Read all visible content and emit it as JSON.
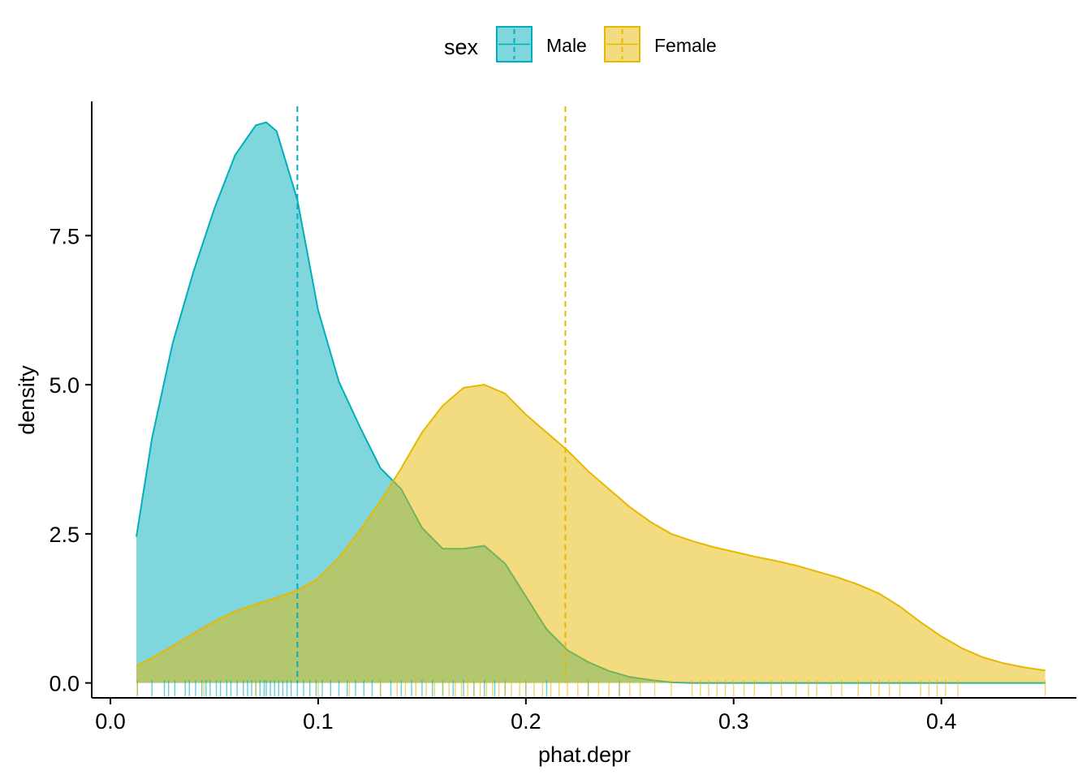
{
  "chart_data": {
    "type": "area",
    "xlabel": "phat.depr",
    "ylabel": "density",
    "xlim": [
      -0.009,
      0.465
    ],
    "ylim": [
      -0.25,
      9.75
    ],
    "x_ticks": [
      0.0,
      0.1,
      0.2,
      0.3,
      0.4
    ],
    "x_tick_labels": [
      "0.0",
      "0.1",
      "0.2",
      "0.3",
      "0.4"
    ],
    "y_ticks": [
      0.0,
      2.5,
      5.0,
      7.5
    ],
    "y_tick_labels": [
      "0.0",
      "2.5",
      "5.0",
      "7.5"
    ],
    "grid": false,
    "legend": {
      "title": "sex",
      "position": "top"
    },
    "series": [
      {
        "name": "Male",
        "color": "#00AFBB",
        "fill_opacity": 0.5,
        "mean": 0.09,
        "x": [
          0.0125,
          0.02,
          0.03,
          0.04,
          0.05,
          0.06,
          0.07,
          0.075,
          0.08,
          0.09,
          0.1,
          0.11,
          0.12,
          0.13,
          0.14,
          0.15,
          0.16,
          0.17,
          0.18,
          0.19,
          0.2,
          0.21,
          0.22,
          0.23,
          0.24,
          0.25,
          0.26,
          0.27,
          0.28,
          0.3,
          0.35,
          0.4,
          0.45
        ],
        "y": [
          2.45,
          4.1,
          5.7,
          6.9,
          7.95,
          8.85,
          9.35,
          9.4,
          9.25,
          8.1,
          6.25,
          5.05,
          4.3,
          3.6,
          3.25,
          2.6,
          2.25,
          2.25,
          2.3,
          2.0,
          1.45,
          0.9,
          0.55,
          0.35,
          0.2,
          0.1,
          0.05,
          0.01,
          0.0,
          0.0,
          0.0,
          0.0,
          0.0
        ]
      },
      {
        "name": "Female",
        "color": "#E7B800",
        "fill_opacity": 0.5,
        "mean": 0.219,
        "x": [
          0.0125,
          0.02,
          0.03,
          0.04,
          0.05,
          0.06,
          0.07,
          0.08,
          0.09,
          0.1,
          0.11,
          0.12,
          0.13,
          0.14,
          0.15,
          0.16,
          0.17,
          0.18,
          0.19,
          0.2,
          0.21,
          0.22,
          0.23,
          0.24,
          0.25,
          0.26,
          0.27,
          0.28,
          0.29,
          0.3,
          0.31,
          0.32,
          0.33,
          0.34,
          0.35,
          0.36,
          0.37,
          0.38,
          0.39,
          0.4,
          0.41,
          0.42,
          0.43,
          0.44,
          0.45
        ],
        "y": [
          0.28,
          0.42,
          0.62,
          0.83,
          1.03,
          1.2,
          1.32,
          1.43,
          1.55,
          1.75,
          2.1,
          2.55,
          3.05,
          3.6,
          4.2,
          4.65,
          4.95,
          5.0,
          4.85,
          4.5,
          4.2,
          3.9,
          3.55,
          3.25,
          2.95,
          2.7,
          2.5,
          2.38,
          2.28,
          2.2,
          2.12,
          2.05,
          1.97,
          1.87,
          1.77,
          1.65,
          1.5,
          1.28,
          1.02,
          0.78,
          0.58,
          0.43,
          0.33,
          0.26,
          0.21
        ]
      }
    ],
    "rug": {
      "Male": [
        0.013,
        0.02,
        0.026,
        0.028,
        0.031,
        0.036,
        0.038,
        0.041,
        0.044,
        0.046,
        0.048,
        0.051,
        0.053,
        0.056,
        0.058,
        0.061,
        0.064,
        0.066,
        0.068,
        0.07,
        0.072,
        0.074,
        0.075,
        0.077,
        0.079,
        0.081,
        0.083,
        0.085,
        0.087,
        0.09,
        0.093,
        0.096,
        0.099,
        0.102,
        0.106,
        0.11,
        0.114,
        0.118,
        0.122,
        0.126,
        0.13,
        0.135,
        0.14,
        0.145,
        0.15,
        0.155,
        0.16,
        0.165,
        0.17,
        0.175,
        0.18,
        0.185,
        0.19,
        0.2,
        0.21,
        0.23,
        0.245
      ],
      "Female": [
        0.013,
        0.045,
        0.07,
        0.1,
        0.115,
        0.13,
        0.138,
        0.142,
        0.147,
        0.152,
        0.156,
        0.16,
        0.163,
        0.166,
        0.169,
        0.172,
        0.175,
        0.178,
        0.181,
        0.184,
        0.187,
        0.19,
        0.193,
        0.197,
        0.2,
        0.204,
        0.208,
        0.212,
        0.216,
        0.22,
        0.225,
        0.23,
        0.235,
        0.24,
        0.245,
        0.25,
        0.255,
        0.262,
        0.27,
        0.28,
        0.284,
        0.288,
        0.292,
        0.296,
        0.3,
        0.305,
        0.31,
        0.318,
        0.323,
        0.33,
        0.336,
        0.34,
        0.347,
        0.352,
        0.36,
        0.366,
        0.37,
        0.375,
        0.38,
        0.39,
        0.394,
        0.398,
        0.402,
        0.408,
        0.45
      ]
    }
  }
}
